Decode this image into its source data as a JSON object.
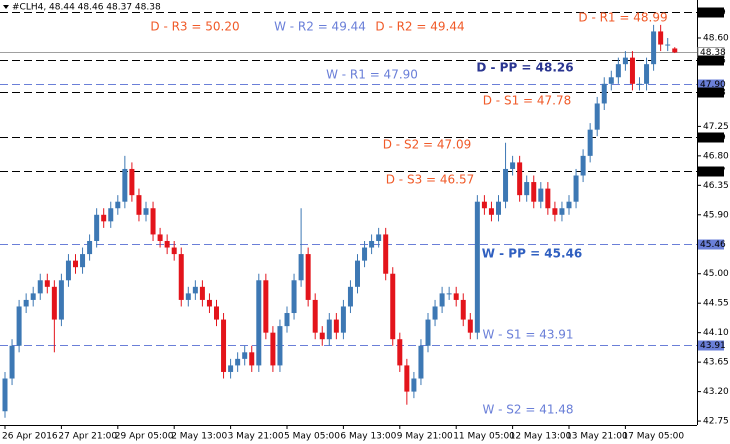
{
  "chart_data": {
    "type": "candlestick",
    "title": "#CLH4, 48.44 48.46 48.37 48.38",
    "categories": [
      "26 Apr 2016",
      null,
      null,
      null,
      null,
      null,
      null,
      null,
      "27 Apr 21:00",
      null,
      null,
      null,
      null,
      null,
      null,
      null,
      "29 Apr 05:00",
      null,
      null,
      null,
      null,
      null,
      null,
      null,
      "2 May 13:00",
      null,
      null,
      null,
      null,
      null,
      null,
      null,
      "3 May 21:00",
      null,
      null,
      null,
      null,
      null,
      null,
      null,
      "5 May 05:00",
      null,
      null,
      null,
      null,
      null,
      null,
      null,
      "6 May 13:00",
      null,
      null,
      null,
      null,
      null,
      null,
      null,
      "9 May 21:00",
      null,
      null,
      null,
      null,
      null,
      null,
      null,
      "11 May 05:00",
      null,
      null,
      null,
      null,
      null,
      null,
      null,
      "12 May 13:00",
      null,
      null,
      null,
      null,
      null,
      null,
      null,
      "13 May 21:00",
      null,
      null,
      null,
      null,
      null,
      null,
      null,
      "17 May 05:00",
      null,
      null,
      null,
      null,
      null,
      null,
      null
    ],
    "open": [
      42.9,
      43.4,
      43.9,
      44.5,
      44.6,
      44.7,
      44.9,
      44.8,
      44.3,
      44.9,
      45.2,
      45.1,
      45.3,
      45.5,
      45.9,
      45.8,
      46.0,
      46.1,
      46.6,
      46.2,
      45.9,
      46.0,
      45.6,
      45.5,
      45.4,
      45.3,
      44.6,
      44.7,
      44.8,
      44.6,
      44.5,
      44.3,
      43.5,
      43.6,
      43.7,
      43.8,
      43.6,
      44.9,
      44.1,
      43.6,
      44.2,
      44.4,
      44.9,
      45.3,
      44.6,
      44.1,
      44.0,
      44.3,
      44.1,
      44.5,
      44.8,
      45.2,
      45.4,
      45.5,
      45.6,
      45.0,
      44.0,
      43.6,
      43.2,
      43.4,
      43.9,
      44.3,
      44.5,
      44.7,
      44.7,
      44.6,
      44.3,
      44.1,
      46.1,
      46.0,
      45.9,
      46.1,
      46.6,
      46.7,
      46.2,
      46.4,
      46.1,
      46.3,
      46.0,
      45.9,
      46.0,
      46.1,
      46.5,
      46.8,
      47.2,
      47.6,
      47.9,
      48.0,
      48.2,
      48.3,
      47.9,
      47.9,
      48.2,
      48.7,
      48.5,
      48.44
    ],
    "high": [
      43.5,
      44.0,
      44.6,
      44.7,
      44.8,
      45.0,
      45.0,
      44.9,
      45.0,
      45.3,
      45.3,
      45.4,
      45.6,
      46.0,
      46.0,
      46.1,
      46.2,
      46.8,
      46.7,
      46.3,
      46.1,
      46.1,
      45.7,
      45.6,
      45.5,
      45.4,
      44.8,
      44.9,
      44.9,
      44.7,
      44.6,
      44.4,
      43.7,
      43.8,
      43.9,
      43.9,
      45.0,
      45.0,
      44.2,
      44.3,
      44.5,
      45.0,
      46.0,
      45.4,
      44.7,
      44.2,
      44.4,
      44.4,
      44.6,
      44.9,
      45.3,
      45.5,
      45.6,
      45.7,
      45.7,
      45.1,
      44.1,
      43.7,
      43.5,
      44.0,
      44.4,
      44.6,
      44.8,
      44.8,
      44.8,
      44.7,
      44.4,
      46.2,
      46.2,
      46.1,
      46.2,
      47.0,
      46.8,
      46.8,
      46.5,
      46.5,
      46.4,
      46.4,
      46.1,
      46.1,
      46.2,
      46.6,
      46.9,
      47.3,
      47.7,
      48.0,
      48.1,
      48.3,
      48.4,
      48.4,
      48.0,
      48.3,
      48.8,
      48.8,
      48.6,
      48.46
    ],
    "low": [
      42.8,
      43.3,
      43.8,
      44.4,
      44.5,
      44.6,
      44.7,
      43.8,
      44.2,
      44.8,
      45.0,
      45.0,
      45.2,
      45.4,
      45.7,
      45.7,
      45.9,
      46.0,
      46.1,
      45.8,
      45.8,
      45.5,
      45.4,
      45.3,
      45.2,
      44.5,
      44.5,
      44.6,
      44.5,
      44.4,
      44.2,
      43.4,
      43.4,
      43.5,
      43.6,
      43.5,
      43.5,
      44.0,
      43.5,
      43.5,
      44.1,
      44.3,
      44.8,
      44.5,
      44.0,
      43.9,
      43.9,
      44.0,
      44.0,
      44.4,
      44.7,
      45.1,
      45.3,
      45.4,
      44.9,
      43.9,
      43.5,
      43.0,
      43.1,
      43.3,
      43.8,
      44.2,
      44.4,
      44.6,
      44.5,
      44.2,
      44.0,
      44.0,
      45.9,
      45.8,
      45.8,
      46.0,
      46.5,
      46.1,
      46.1,
      46.0,
      46.0,
      45.9,
      45.8,
      45.8,
      45.9,
      46.0,
      46.4,
      46.7,
      47.1,
      47.5,
      47.8,
      47.9,
      48.1,
      47.8,
      47.8,
      47.8,
      48.1,
      48.4,
      48.4,
      48.37
    ],
    "close": [
      43.4,
      43.9,
      44.5,
      44.6,
      44.7,
      44.9,
      44.8,
      44.3,
      44.9,
      45.2,
      45.1,
      45.3,
      45.5,
      45.9,
      45.8,
      46.0,
      46.1,
      46.6,
      46.2,
      45.9,
      46.0,
      45.6,
      45.5,
      45.4,
      45.3,
      44.6,
      44.7,
      44.8,
      44.6,
      44.5,
      44.3,
      43.5,
      43.6,
      43.7,
      43.8,
      43.6,
      44.9,
      44.1,
      43.6,
      44.2,
      44.4,
      44.9,
      45.3,
      44.6,
      44.1,
      44.0,
      44.3,
      44.1,
      44.5,
      44.8,
      45.2,
      45.4,
      45.5,
      45.6,
      45.0,
      44.0,
      43.6,
      43.2,
      43.4,
      43.9,
      44.3,
      44.5,
      44.7,
      44.7,
      44.6,
      44.3,
      44.1,
      46.1,
      46.0,
      45.9,
      46.1,
      46.6,
      46.7,
      46.2,
      46.4,
      46.1,
      46.3,
      46.0,
      45.9,
      46.0,
      46.1,
      46.5,
      46.8,
      47.2,
      47.6,
      47.9,
      48.0,
      48.2,
      48.3,
      47.9,
      47.9,
      48.2,
      48.7,
      48.5,
      48.5,
      48.38
    ],
    "up_color": "#3d78b4",
    "down_color": "#e3141b",
    "ylim": [
      42.69,
      49.18
    ],
    "yticks": [
      {
        "value": 48.6,
        "label": "48.60"
      },
      {
        "value": 47.25,
        "label": "47.25"
      },
      {
        "value": 46.8,
        "label": "46.80"
      },
      {
        "value": 46.35,
        "label": "46.35"
      },
      {
        "value": 45.9,
        "label": "45.90"
      },
      {
        "value": 45.0,
        "label": "45.00"
      },
      {
        "value": 44.55,
        "label": "44.55"
      },
      {
        "value": 44.1,
        "label": "44.10"
      },
      {
        "value": 43.65,
        "label": "43.65"
      },
      {
        "value": 43.2,
        "label": "43.20"
      },
      {
        "value": 42.75,
        "label": "42.75"
      }
    ],
    "levels": [
      {
        "value": 48.99,
        "label": "48.99",
        "color": "#000000",
        "style": "dash"
      },
      {
        "value": 48.38,
        "label": "48.38",
        "color": "#a0a0a0",
        "style": "solid"
      },
      {
        "value": 48.26,
        "label": "48.26",
        "color": "#000000",
        "style": "dash"
      },
      {
        "value": 47.9,
        "label": "47.90",
        "color": "#6a7fd8",
        "style": "dash"
      },
      {
        "value": 47.78,
        "label": "47.78",
        "color": "#000000",
        "style": "dash"
      },
      {
        "value": 47.09,
        "label": "47.09",
        "color": "#000000",
        "style": "dash"
      },
      {
        "value": 46.57,
        "label": "46.57",
        "color": "#000000",
        "style": "dash"
      },
      {
        "value": 45.46,
        "label": "45.46",
        "color": "#6a7fd8",
        "style": "dash"
      },
      {
        "value": 43.91,
        "label": "43.91",
        "color": "#6a7fd8",
        "style": "dash"
      }
    ],
    "annotations": [
      {
        "text": "D - R3 = 50.20",
        "color": "#f05a28",
        "bold": false
      },
      {
        "text": "W - R2 = 49.44",
        "color": "#6a7fd8",
        "bold": false
      },
      {
        "text": "D - R2 = 49.44",
        "color": "#f05a28",
        "bold": false
      },
      {
        "text": "D - R1 = 48.99",
        "color": "#f05a28",
        "bold": false
      },
      {
        "text": "D - PP = 48.26",
        "color": "#2a3590",
        "bold": true
      },
      {
        "text": "W - R1 = 47.90",
        "color": "#6a7fd8",
        "bold": false
      },
      {
        "text": "D - S1 = 47.78",
        "color": "#f05a28",
        "bold": false
      },
      {
        "text": "D - S2 = 47.09",
        "color": "#f05a28",
        "bold": false
      },
      {
        "text": "D - S3 = 46.57",
        "color": "#f05a28",
        "bold": false
      },
      {
        "text": "W - PP = 45.46",
        "color": "#2f5fc0",
        "bold": true
      },
      {
        "text": "W - S1 = 43.91",
        "color": "#6a7fd8",
        "bold": false
      },
      {
        "text": "W - S2 = 41.48",
        "color": "#6a7fd8",
        "bold": false
      }
    ]
  }
}
